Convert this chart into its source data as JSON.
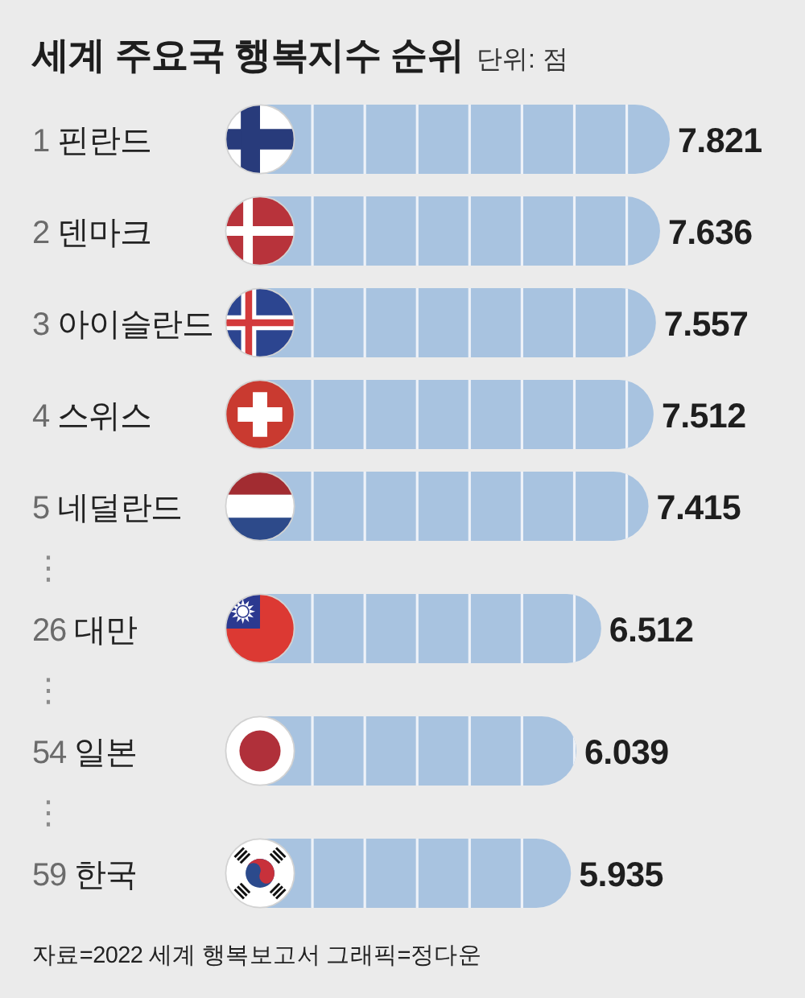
{
  "chart_data": {
    "type": "bar",
    "orientation": "horizontal",
    "title": "세계 주요국 행복지수 순위",
    "subtitle": "단위: 점",
    "categories": [
      "1 핀란드",
      "2 덴마크",
      "3 아이슬란드",
      "4 스위스",
      "5 네덜란드",
      "⋮",
      "26 대만",
      "⋮",
      "54 일본",
      "⋮",
      "59 한국"
    ],
    "values": [
      7.821,
      7.636,
      7.557,
      7.512,
      7.415,
      null,
      6.512,
      null,
      6.039,
      null,
      5.935
    ],
    "color": "#a8c3e0",
    "data_labels": true,
    "xticks": [
      {
        "value": 1,
        "label": null
      },
      {
        "value": 2,
        "label": null
      },
      {
        "value": 3,
        "label": null
      },
      {
        "value": 4,
        "label": null
      },
      {
        "value": 5,
        "label": null
      },
      {
        "value": 6,
        "label": null
      },
      {
        "value": 7,
        "label": null
      }
    ],
    "grid": "x",
    "tick_labels": "y",
    "annotations": [
      "자료=2022 세계 행복보고서 그래픽=정다운"
    ]
  }
}
